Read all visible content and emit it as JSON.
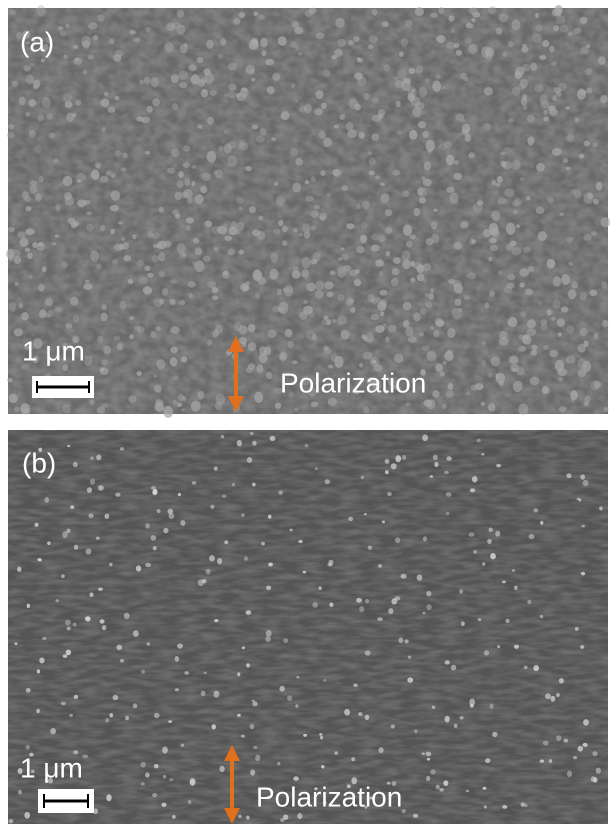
{
  "panels": [
    {
      "label": "(a)",
      "scale_bar": "1 μm",
      "annotation": "Polarization"
    },
    {
      "label": "(b)",
      "scale_bar": "1 μm",
      "annotation": "Polarization"
    }
  ]
}
